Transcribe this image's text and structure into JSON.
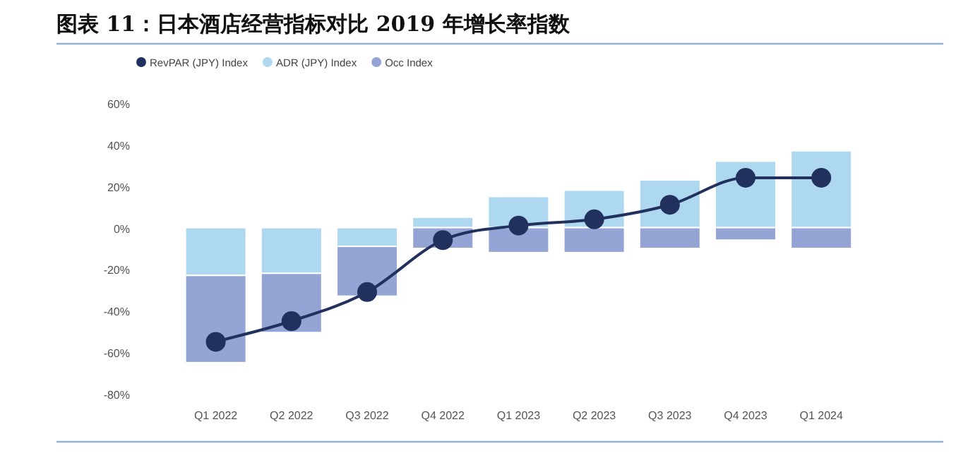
{
  "chart_data": {
    "type": "bar",
    "title": "图表 11：日本酒店经营指标对比 2019 年增长率指数",
    "categories": [
      "Q1 2022",
      "Q2 2022",
      "Q3 2022",
      "Q4 2022",
      "Q1 2023",
      "Q2 2023",
      "Q3 2023",
      "Q4 2023",
      "Q1 2024"
    ],
    "stacked": true,
    "legend": "top left",
    "grid": false,
    "ylim": [
      -80,
      60
    ],
    "yticks": [
      {
        "value": -80,
        "label": "-80%"
      },
      {
        "value": -60,
        "label": "-60%"
      },
      {
        "value": -40,
        "label": "-40%"
      },
      {
        "value": -20,
        "label": "-20%"
      },
      {
        "value": 0,
        "label": "0%"
      },
      {
        "value": 20,
        "label": "20%"
      },
      {
        "value": 40,
        "label": "40%"
      },
      {
        "value": 60,
        "label": "60%"
      }
    ],
    "series": [
      {
        "name": "RevPAR (JPY) Index",
        "type": "line",
        "marker": "circle",
        "color": "#22305e",
        "values": [
          -55,
          -45,
          -31,
          -6,
          1,
          4,
          11,
          24,
          24
        ]
      },
      {
        "name": "ADR (JPY) Index",
        "color": "#add8f0",
        "values": [
          -23,
          -22,
          -9,
          5,
          15,
          18,
          23,
          32,
          37
        ]
      },
      {
        "name": "Occ Index",
        "color": "#94a5d5",
        "values": [
          -42,
          -28.5,
          -24,
          -10,
          -12,
          -12,
          -10,
          -6,
          -10
        ]
      }
    ]
  }
}
